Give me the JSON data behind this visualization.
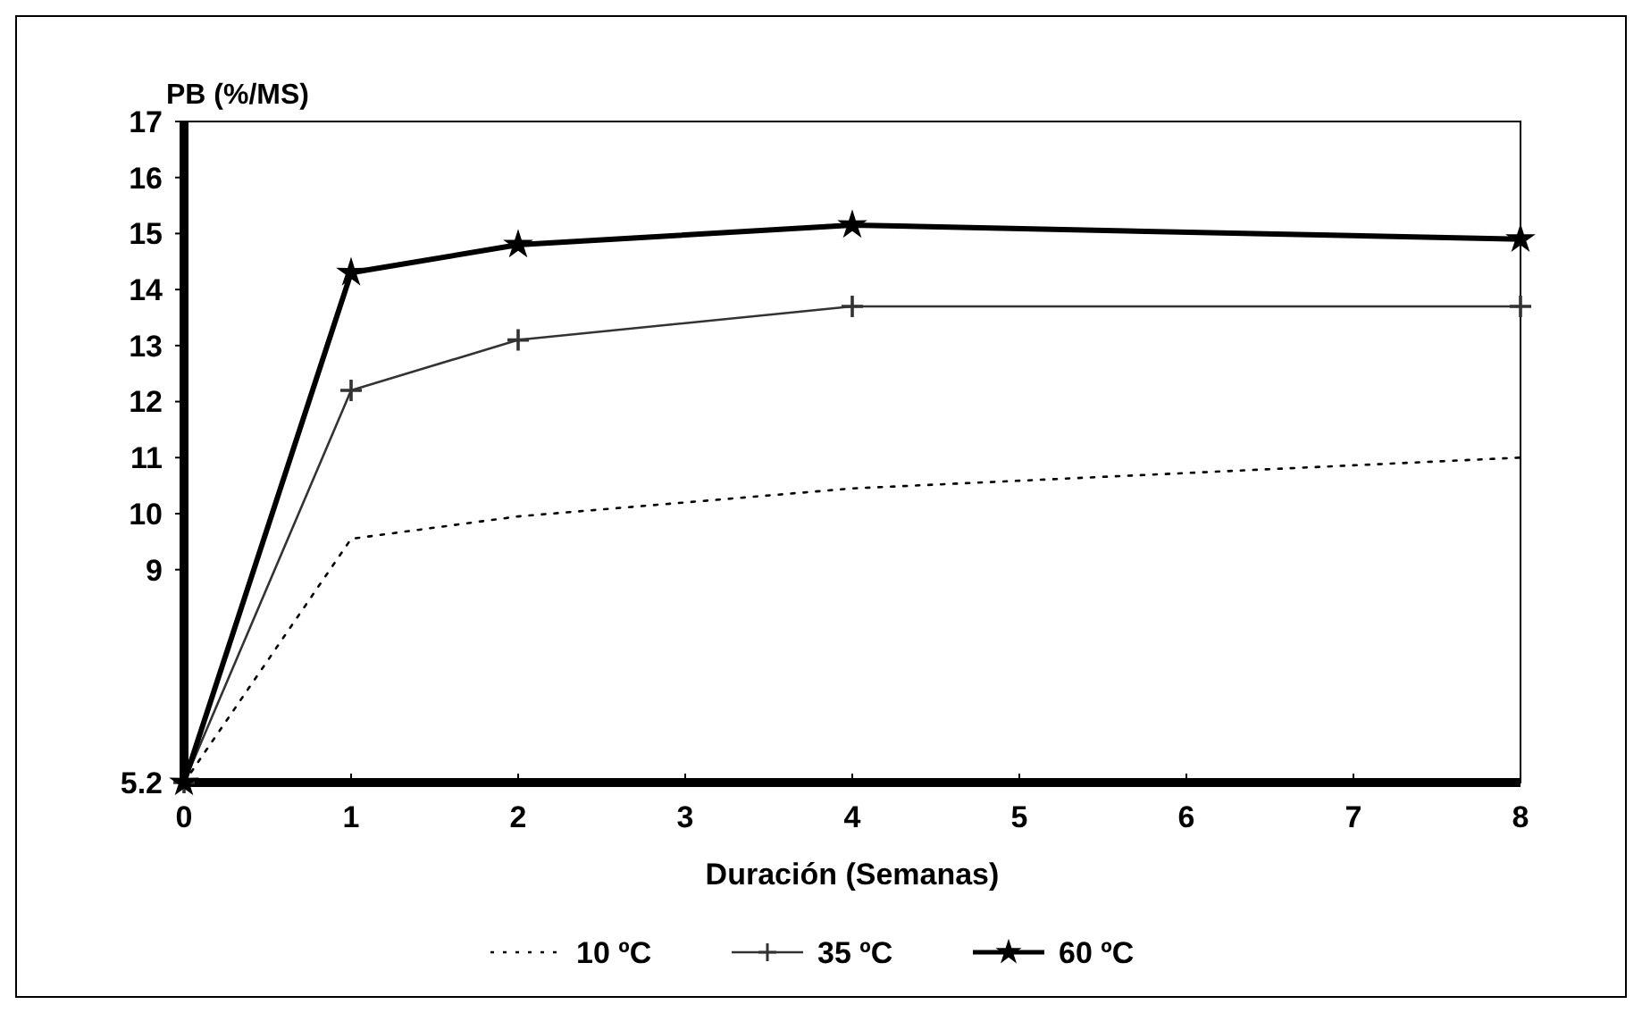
{
  "chart_data": {
    "type": "line",
    "ylabel": "PB (%/MS)",
    "xlabel": "Duración (Semanas)",
    "x": [
      0,
      1,
      2,
      4,
      8
    ],
    "xlim": [
      0,
      8
    ],
    "xticks": [
      0,
      1,
      2,
      3,
      4,
      5,
      6,
      7,
      8
    ],
    "ylim": [
      5.2,
      17
    ],
    "yticks": [
      5.2,
      9,
      10,
      11,
      12,
      13,
      14,
      15,
      16,
      17
    ],
    "grid": false,
    "legend": "bottom",
    "series": [
      {
        "name": "10 ºC",
        "color": "#000000",
        "values": [
          5.2,
          9.55,
          9.95,
          10.45,
          11.0
        ],
        "line_style": "dotted",
        "marker": "none"
      },
      {
        "name": "35 ºC",
        "color": "#333333",
        "values": [
          5.2,
          12.2,
          13.1,
          13.7,
          13.7
        ],
        "line_style": "solid",
        "marker": "cross"
      },
      {
        "name": "60 ºC",
        "color": "#000000",
        "values": [
          5.2,
          14.3,
          14.8,
          15.15,
          14.9
        ],
        "line_style": "solid",
        "marker": "star"
      }
    ]
  }
}
